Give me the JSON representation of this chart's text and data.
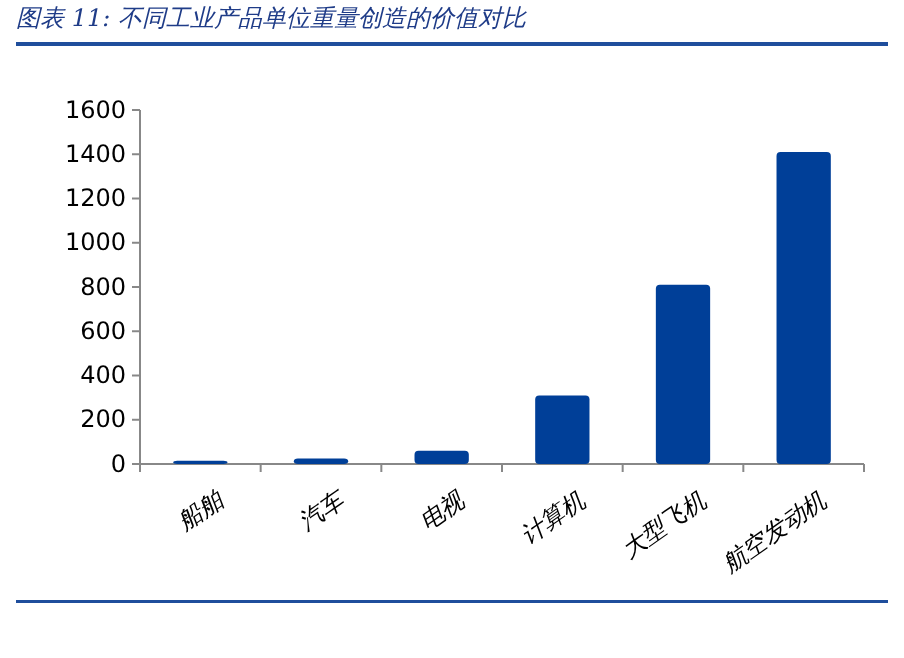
{
  "chart_data": {
    "type": "bar",
    "title": "图表 11:  不同工业产品单位重量创造的价值对比",
    "categories": [
      "船舶",
      "汽车",
      "电视",
      "计算机",
      "大型飞机",
      "航空发动机"
    ],
    "values": [
      15,
      25,
      60,
      310,
      810,
      1410
    ],
    "color": "#003f98",
    "ylim": [
      0,
      1600
    ],
    "yticks": [
      0,
      200,
      400,
      600,
      800,
      1000,
      1200,
      1400,
      1600
    ],
    "grid": false
  }
}
